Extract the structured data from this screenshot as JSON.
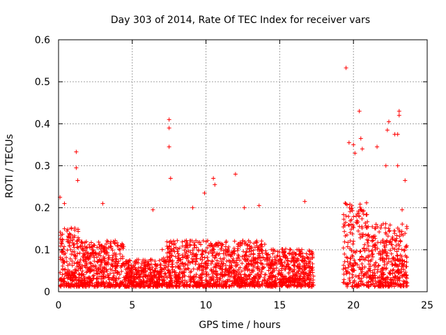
{
  "chart_data": {
    "type": "scatter",
    "title": "Day 303 of 2014, Rate Of TEC Index for receiver vars",
    "xlabel": "GPS time / hours",
    "ylabel": "ROTI / TECUs",
    "xlim": [
      0,
      25
    ],
    "ylim": [
      0,
      0.6
    ],
    "xticks": [
      0,
      5,
      10,
      15,
      20,
      25
    ],
    "yticks": [
      0,
      0.1,
      0.2,
      0.3,
      0.4,
      0.5,
      0.6
    ],
    "grid": true,
    "marker": "+",
    "series": [
      {
        "name": "ROTI",
        "color": "#ff0000",
        "data_gaps_hours": [
          [
            17.3,
            19.3
          ]
        ],
        "notable_points": [
          {
            "x": 0.1,
            "y": 0.225
          },
          {
            "x": 0.4,
            "y": 0.21
          },
          {
            "x": 1.2,
            "y": 0.333
          },
          {
            "x": 1.2,
            "y": 0.295
          },
          {
            "x": 1.3,
            "y": 0.265
          },
          {
            "x": 3.0,
            "y": 0.21
          },
          {
            "x": 6.4,
            "y": 0.195
          },
          {
            "x": 7.5,
            "y": 0.41
          },
          {
            "x": 7.5,
            "y": 0.39
          },
          {
            "x": 7.5,
            "y": 0.345
          },
          {
            "x": 7.6,
            "y": 0.27
          },
          {
            "x": 9.1,
            "y": 0.2
          },
          {
            "x": 9.9,
            "y": 0.235
          },
          {
            "x": 10.5,
            "y": 0.27
          },
          {
            "x": 10.6,
            "y": 0.255
          },
          {
            "x": 12.0,
            "y": 0.28
          },
          {
            "x": 12.6,
            "y": 0.2
          },
          {
            "x": 13.6,
            "y": 0.205
          },
          {
            "x": 16.7,
            "y": 0.215
          },
          {
            "x": 19.5,
            "y": 0.533
          },
          {
            "x": 19.7,
            "y": 0.355
          },
          {
            "x": 20.0,
            "y": 0.35
          },
          {
            "x": 20.1,
            "y": 0.33
          },
          {
            "x": 20.4,
            "y": 0.43
          },
          {
            "x": 20.5,
            "y": 0.365
          },
          {
            "x": 20.6,
            "y": 0.34
          },
          {
            "x": 21.6,
            "y": 0.345
          },
          {
            "x": 22.4,
            "y": 0.405
          },
          {
            "x": 22.3,
            "y": 0.385
          },
          {
            "x": 22.2,
            "y": 0.3
          },
          {
            "x": 22.8,
            "y": 0.375
          },
          {
            "x": 23.0,
            "y": 0.375
          },
          {
            "x": 23.1,
            "y": 0.43
          },
          {
            "x": 23.1,
            "y": 0.42
          },
          {
            "x": 23.0,
            "y": 0.3
          },
          {
            "x": 23.5,
            "y": 0.265
          },
          {
            "x": 23.3,
            "y": 0.195
          }
        ]
      }
    ]
  }
}
